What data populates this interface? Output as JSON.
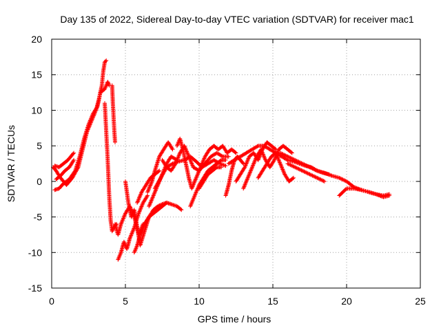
{
  "chart_data": {
    "type": "scatter",
    "title": "Day 135 of 2022, Sidereal Day-to-day VTEC variation (SDTVAR) for receiver mac1",
    "xlabel": "GPS time / hours",
    "ylabel": "SDTVAR / TECUs",
    "xlim": [
      0,
      25
    ],
    "ylim": [
      -15,
      20
    ],
    "xticks": [
      "0",
      "5",
      "10",
      "15",
      "20",
      "25"
    ],
    "yticks": [
      "-15",
      "-10",
      "-5",
      "0",
      "5",
      "10",
      "15",
      "20"
    ],
    "grid": true,
    "marker": "+",
    "series": [
      {
        "name": "SDTVAR",
        "color": "#ff0000",
        "tracks": [
          {
            "x": [
              0.1,
              0.3,
              0.6,
              1.0,
              1.4,
              1.8,
              2.1,
              2.4,
              2.7,
              3.0,
              3.2,
              3.4,
              3.5,
              3.6,
              3.7
            ],
            "y": [
              2.0,
              1.5,
              0.5,
              -0.5,
              0.5,
              2.0,
              4.5,
              7.0,
              8.5,
              10.0,
              11.5,
              13.5,
              15.5,
              16.8,
              17.0
            ]
          },
          {
            "x": [
              0.2,
              0.5,
              0.8,
              1.2,
              1.6,
              1.9,
              2.2,
              2.5,
              2.8,
              3.1,
              3.3,
              3.6,
              3.8,
              3.9
            ],
            "y": [
              -1.2,
              -1.0,
              -0.3,
              0.3,
              1.5,
              3.5,
              6.0,
              8.0,
              9.5,
              10.5,
              12.5,
              13.0,
              14.0,
              13.5
            ]
          },
          {
            "x": [
              0.2,
              0.5,
              0.8,
              1.1,
              1.5
            ],
            "y": [
              2.2,
              2.0,
              2.5,
              3.0,
              4.0
            ]
          },
          {
            "x": [
              0.3,
              0.6,
              0.9,
              1.2,
              1.5
            ],
            "y": [
              0.3,
              0.8,
              1.5,
              2.0,
              3.0
            ]
          },
          {
            "x": [
              3.6,
              3.7,
              3.8,
              3.9,
              4.0,
              4.1,
              4.2,
              4.4
            ],
            "y": [
              11.0,
              7.0,
              3.0,
              -2.0,
              -5.5,
              -7.0,
              -6.5,
              -6.0
            ]
          },
          {
            "x": [
              4.1,
              4.15,
              4.2,
              4.25,
              4.3
            ],
            "y": [
              13.5,
              11.0,
              9.0,
              7.0,
              5.5
            ]
          },
          {
            "x": [
              4.3,
              4.5,
              4.7,
              5.0,
              5.3,
              5.6,
              5.9,
              6.2
            ],
            "y": [
              -6.0,
              -7.5,
              -6.0,
              -4.5,
              -3.5,
              -5.0,
              -7.5,
              -6.0
            ]
          },
          {
            "x": [
              4.5,
              4.7,
              4.9,
              5.1,
              5.3,
              5.6,
              5.9,
              6.2,
              6.5
            ],
            "y": [
              -11.0,
              -10.0,
              -8.5,
              -9.5,
              -8.0,
              -6.5,
              -4.5,
              -3.0,
              -2.0
            ]
          },
          {
            "x": [
              5.0,
              5.2,
              5.4,
              5.6,
              5.8,
              6.0,
              6.3,
              6.6
            ],
            "y": [
              0.0,
              -3.0,
              -5.0,
              -4.0,
              -6.5,
              -9.0,
              -7.0,
              -5.0
            ]
          },
          {
            "x": [
              5.6,
              5.8,
              6.0,
              6.3,
              6.6,
              6.9,
              7.2,
              7.5,
              7.8
            ],
            "y": [
              -10.0,
              -9.0,
              -7.5,
              -6.0,
              -5.0,
              -4.5,
              -4.0,
              -3.5,
              -3.0
            ]
          },
          {
            "x": [
              5.8,
              6.1,
              6.4,
              6.7,
              7.0,
              7.3
            ],
            "y": [
              -3.0,
              -1.5,
              -0.5,
              0.5,
              1.0,
              1.5
            ]
          },
          {
            "x": [
              6.0,
              6.3,
              6.6,
              6.9,
              7.2,
              7.5,
              7.8,
              8.1,
              8.5,
              8.8
            ],
            "y": [
              -7.5,
              -6.0,
              -5.0,
              -4.0,
              -3.5,
              -3.2,
              -3.0,
              -3.2,
              -3.5,
              -4.0
            ]
          },
          {
            "x": [
              6.5,
              6.8,
              7.0,
              7.3,
              7.6,
              7.9,
              8.2
            ],
            "y": [
              -1.5,
              0.0,
              1.5,
              3.5,
              4.5,
              5.5,
              4.5
            ]
          },
          {
            "x": [
              6.6,
              6.9,
              7.2,
              7.5,
              7.8,
              8.1,
              8.5
            ],
            "y": [
              -3.5,
              -2.0,
              -0.5,
              1.0,
              2.5,
              3.5,
              3.0
            ]
          },
          {
            "x": [
              7.0,
              7.4,
              7.8,
              8.2,
              8.6,
              9.0,
              9.4,
              9.8,
              10.2,
              10.6,
              11.0,
              11.4,
              11.8
            ],
            "y": [
              -1.0,
              0.5,
              2.0,
              2.5,
              2.8,
              3.0,
              3.5,
              2.8,
              2.0,
              2.5,
              3.0,
              2.5,
              2.2
            ]
          },
          {
            "x": [
              7.5,
              7.8,
              8.1,
              8.4,
              8.7,
              9.0,
              9.3,
              9.6,
              10.0,
              10.4,
              10.8,
              11.2,
              11.6,
              12.0
            ],
            "y": [
              3.0,
              2.0,
              1.5,
              2.5,
              4.0,
              5.0,
              3.5,
              2.0,
              1.5,
              2.5,
              3.5,
              4.0,
              3.5,
              3.5
            ]
          },
          {
            "x": [
              8.5,
              8.7,
              8.9,
              9.1,
              9.3,
              9.5,
              9.8,
              10.1,
              10.4,
              10.7,
              11.0,
              11.3,
              11.6,
              11.9,
              12.2,
              12.5
            ],
            "y": [
              5.0,
              6.0,
              4.5,
              2.5,
              0.5,
              -1.0,
              0.5,
              2.0,
              3.5,
              4.5,
              5.0,
              4.5,
              5.0,
              4.0,
              4.5,
              4.0
            ]
          },
          {
            "x": [
              9.4,
              9.6,
              9.8,
              10.0,
              10.3,
              10.6,
              10.9,
              11.2,
              11.5,
              11.8
            ],
            "y": [
              -3.5,
              -2.5,
              -1.5,
              -0.5,
              0.5,
              1.5,
              2.0,
              2.5,
              3.0,
              3.0
            ]
          },
          {
            "x": [
              10.0,
              10.3,
              10.6,
              10.9,
              11.2,
              11.5
            ],
            "y": [
              -1.0,
              0.0,
              1.0,
              1.5,
              2.0,
              2.0
            ]
          },
          {
            "x": [
              11.8,
              12.0,
              12.2,
              12.4,
              12.6,
              12.8,
              13.0
            ],
            "y": [
              -2.0,
              -0.5,
              1.5,
              3.0,
              3.5,
              3.0,
              2.5
            ]
          },
          {
            "x": [
              12.0,
              12.4,
              12.8,
              13.2,
              13.6,
              14.0,
              14.4,
              14.8,
              15.2,
              15.6,
              16.0,
              16.4,
              16.8,
              17.2,
              17.6,
              18.0,
              18.4,
              18.8
            ],
            "y": [
              2.5,
              3.0,
              3.5,
              4.0,
              4.5,
              5.0,
              5.0,
              4.5,
              4.0,
              3.5,
              3.0,
              2.8,
              2.5,
              2.2,
              2.0,
              1.5,
              1.2,
              1.0
            ]
          },
          {
            "x": [
              12.5,
              12.8,
              13.1,
              13.4,
              13.7,
              14.0,
              14.3,
              14.6,
              14.9,
              15.2
            ],
            "y": [
              0.0,
              1.0,
              2.0,
              3.5,
              4.0,
              3.0,
              4.5,
              5.5,
              5.0,
              4.5
            ]
          },
          {
            "x": [
              13.0,
              13.3,
              13.6,
              13.9,
              14.2,
              14.5,
              14.8,
              15.1,
              15.4,
              15.7,
              16.0,
              16.3
            ],
            "y": [
              -1.0,
              0.5,
              2.0,
              3.5,
              4.5,
              3.0,
              2.0,
              3.0,
              4.5,
              5.0,
              4.5,
              4.0
            ]
          },
          {
            "x": [
              14.0,
              14.3,
              14.6,
              14.9,
              15.2,
              15.5,
              15.8,
              16.1,
              16.4
            ],
            "y": [
              0.5,
              1.5,
              2.5,
              3.5,
              4.0,
              2.5,
              1.0,
              0.0,
              0.5
            ]
          },
          {
            "x": [
              15.5,
              16.0,
              16.5,
              17.0,
              17.5,
              18.0,
              18.5,
              19.0,
              19.5,
              20.0,
              20.5,
              21.0,
              21.5,
              22.0,
              22.5,
              22.9
            ],
            "y": [
              4.0,
              3.5,
              3.0,
              2.5,
              2.0,
              1.5,
              1.2,
              0.8,
              0.5,
              0.0,
              -0.8,
              -1.2,
              -1.5,
              -1.8,
              -2.0,
              -1.8
            ]
          },
          {
            "x": [
              16.0,
              16.5,
              17.0,
              17.5,
              18.0,
              18.5
            ],
            "y": [
              2.5,
              2.0,
              1.5,
              1.0,
              0.5,
              0.0
            ]
          },
          {
            "x": [
              19.5,
              20.0,
              20.5,
              21.0,
              21.5,
              22.0,
              22.5,
              22.9
            ],
            "y": [
              -2.0,
              -1.0,
              -1.0,
              -1.2,
              -1.5,
              -1.8,
              -2.2,
              -2.0
            ]
          }
        ]
      }
    ]
  }
}
